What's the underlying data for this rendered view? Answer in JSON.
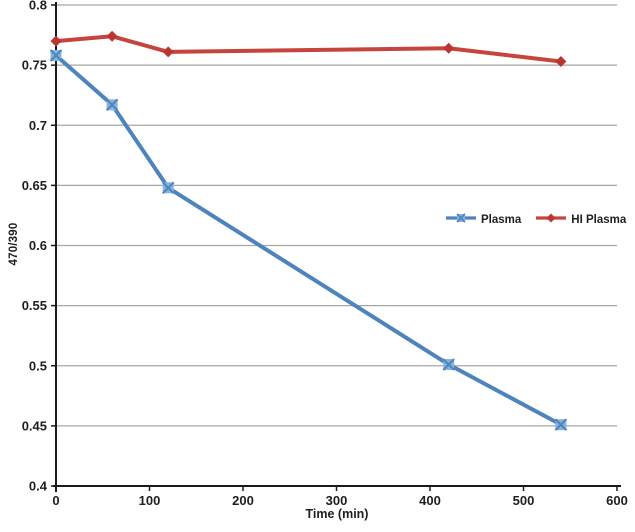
{
  "chart_data": {
    "type": "line",
    "title": "",
    "xlabel": "Time (min)",
    "ylabel": "470/390",
    "x": [
      0,
      60,
      120,
      420,
      540
    ],
    "series": [
      {
        "name": "Plasma",
        "values": [
          0.758,
          0.717,
          0.648,
          0.501,
          0.451
        ],
        "color": "#4E84BD",
        "marker": "x-square",
        "marker_fill": "#85B3DC"
      },
      {
        "name": "HI Plasma",
        "values": [
          0.77,
          0.774,
          0.761,
          0.764,
          0.753
        ],
        "color": "#C5443D",
        "marker": "diamond",
        "marker_fill": "#B93730"
      }
    ],
    "xlim": [
      0,
      600
    ],
    "ylim": [
      0.4,
      0.8
    ],
    "xticks": [
      0,
      100,
      200,
      300,
      400,
      500,
      600
    ],
    "ytick_labels": [
      "0.8",
      "0.75",
      "0.7",
      "0.65",
      "0.6",
      "0.55",
      "0.5",
      "0.45",
      "0.4"
    ],
    "grid": "horizontal-gridlines",
    "legend_position": "middle-right",
    "colors": {
      "gridline": "#A6A6A6",
      "axis": "#1A1A1A",
      "text": "#1F1F1F",
      "background": "#FFFFFF"
    }
  }
}
